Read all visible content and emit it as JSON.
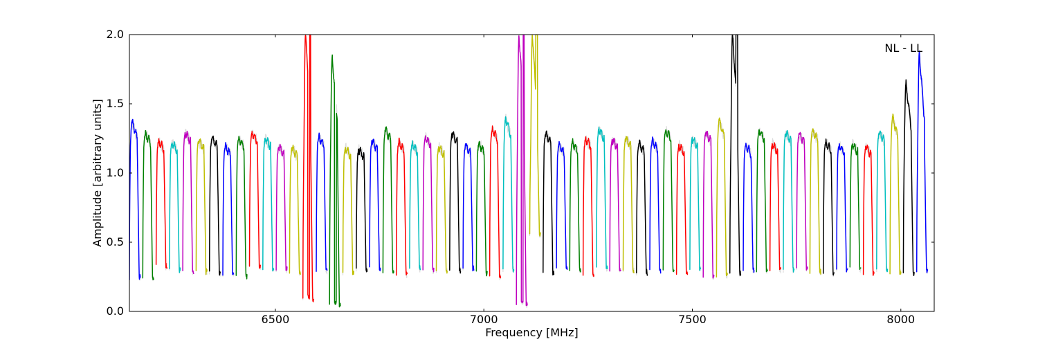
{
  "chart_data": {
    "type": "line",
    "xlabel": "Frequency [MHz]",
    "ylabel": "Amplitude [arbitrary units]",
    "annotation": "NL - LL",
    "xlim": [
      6150,
      8080
    ],
    "ylim": [
      0.0,
      2.0
    ],
    "grid": false,
    "legend": "none",
    "x_ticks": [
      {
        "value": 6500,
        "label": "6500"
      },
      {
        "value": 7000,
        "label": "7000"
      },
      {
        "value": 7500,
        "label": "7500"
      },
      {
        "value": 8000,
        "label": "8000"
      }
    ],
    "y_ticks": [
      {
        "value": 0.0,
        "label": "0.0"
      },
      {
        "value": 0.5,
        "label": "0.5"
      },
      {
        "value": 1.0,
        "label": "1.0"
      },
      {
        "value": 1.5,
        "label": "1.5"
      },
      {
        "value": 2.0,
        "label": "2.0"
      }
    ],
    "color_cycle": [
      "#0000ff",
      "#008000",
      "#ff0000",
      "#00bfbf",
      "#bf00bf",
      "#bfbf00",
      "#000000"
    ],
    "background_color": "#bfbfbf",
    "band": {
      "start": 6148,
      "step": 32.1,
      "count": 60,
      "typical_low": 0.28,
      "typical_high": 1.22
    },
    "series": [
      {
        "start": 6150,
        "end": 6176,
        "peak": 1.37,
        "low": 0.24,
        "color": "#0000ff"
      },
      {
        "start": 6182,
        "end": 6208,
        "peak": 1.28,
        "low": 0.25,
        "color": "#008000"
      },
      {
        "start": 6214,
        "end": 6240,
        "peak": 1.23,
        "low": 0.33,
        "color": "#ff0000"
      },
      {
        "start": 6246,
        "end": 6272,
        "peak": 1.22,
        "low": 0.3,
        "color": "#00bfbf"
      },
      {
        "start": 6278,
        "end": 6304,
        "peak": 1.29,
        "low": 0.29,
        "color": "#bf00bf"
      },
      {
        "start": 6310,
        "end": 6336,
        "peak": 1.23,
        "low": 0.29,
        "color": "#bfbf00"
      },
      {
        "start": 6342,
        "end": 6368,
        "peak": 1.25,
        "low": 0.28,
        "color": "#000000"
      },
      {
        "start": 6374,
        "end": 6400,
        "peak": 1.19,
        "low": 0.27,
        "color": "#0000ff"
      },
      {
        "start": 6406,
        "end": 6432,
        "peak": 1.25,
        "low": 0.26,
        "color": "#008000"
      },
      {
        "start": 6438,
        "end": 6464,
        "peak": 1.29,
        "low": 0.33,
        "color": "#ff0000"
      },
      {
        "start": 6470,
        "end": 6496,
        "peak": 1.25,
        "low": 0.3,
        "color": "#00bfbf"
      },
      {
        "start": 6502,
        "end": 6528,
        "peak": 1.19,
        "low": 0.3,
        "color": "#bf00bf"
      },
      {
        "start": 6534,
        "end": 6560,
        "peak": 1.18,
        "low": 0.28,
        "color": "#bfbf00"
      },
      {
        "start": 6566,
        "end": 6592,
        "peak": 2.0,
        "low": 0.09,
        "color": "#ff0000"
      },
      {
        "start": 6598,
        "end": 6624,
        "peak": 1.26,
        "low": 0.3,
        "color": "#0000ff"
      },
      {
        "start": 6630,
        "end": 6656,
        "peak": 1.84,
        "low": 0.05,
        "color": "#008000"
      },
      {
        "start": 6662,
        "end": 6688,
        "peak": 1.18,
        "low": 0.28,
        "color": "#bfbf00"
      },
      {
        "start": 6694,
        "end": 6720,
        "peak": 1.17,
        "low": 0.3,
        "color": "#000000"
      },
      {
        "start": 6726,
        "end": 6752,
        "peak": 1.23,
        "low": 0.32,
        "color": "#0000ff"
      },
      {
        "start": 6758,
        "end": 6784,
        "peak": 1.31,
        "low": 0.28,
        "color": "#008000"
      },
      {
        "start": 6790,
        "end": 6816,
        "peak": 1.22,
        "low": 0.27,
        "color": "#ff0000"
      },
      {
        "start": 6822,
        "end": 6848,
        "peak": 1.21,
        "low": 0.31,
        "color": "#00bfbf"
      },
      {
        "start": 6854,
        "end": 6880,
        "peak": 1.26,
        "low": 0.29,
        "color": "#bf00bf"
      },
      {
        "start": 6886,
        "end": 6912,
        "peak": 1.19,
        "low": 0.29,
        "color": "#bfbf00"
      },
      {
        "start": 6918,
        "end": 6944,
        "peak": 1.28,
        "low": 0.29,
        "color": "#000000"
      },
      {
        "start": 6950,
        "end": 6976,
        "peak": 1.2,
        "low": 0.31,
        "color": "#0000ff"
      },
      {
        "start": 6982,
        "end": 7008,
        "peak": 1.21,
        "low": 0.28,
        "color": "#008000"
      },
      {
        "start": 7014,
        "end": 7040,
        "peak": 1.31,
        "low": 0.25,
        "color": "#ff0000"
      },
      {
        "start": 7046,
        "end": 7072,
        "peak": 1.4,
        "low": 0.3,
        "color": "#00bfbf"
      },
      {
        "start": 7078,
        "end": 7104,
        "peak": 2.0,
        "low": 0.05,
        "color": "#bf00bf"
      },
      {
        "start": 7110,
        "end": 7136,
        "peak": 2.0,
        "low": 0.55,
        "color": "#bfbf00"
      },
      {
        "start": 7142,
        "end": 7168,
        "peak": 1.28,
        "low": 0.28,
        "color": "#000000"
      },
      {
        "start": 7174,
        "end": 7200,
        "peak": 1.2,
        "low": 0.32,
        "color": "#0000ff"
      },
      {
        "start": 7206,
        "end": 7232,
        "peak": 1.22,
        "low": 0.3,
        "color": "#008000"
      },
      {
        "start": 7238,
        "end": 7264,
        "peak": 1.25,
        "low": 0.27,
        "color": "#ff0000"
      },
      {
        "start": 7270,
        "end": 7296,
        "peak": 1.32,
        "low": 0.31,
        "color": "#00bfbf"
      },
      {
        "start": 7302,
        "end": 7328,
        "peak": 1.24,
        "low": 0.3,
        "color": "#bf00bf"
      },
      {
        "start": 7334,
        "end": 7360,
        "peak": 1.25,
        "low": 0.29,
        "color": "#bfbf00"
      },
      {
        "start": 7366,
        "end": 7392,
        "peak": 1.21,
        "low": 0.28,
        "color": "#000000"
      },
      {
        "start": 7398,
        "end": 7424,
        "peak": 1.23,
        "low": 0.3,
        "color": "#0000ff"
      },
      {
        "start": 7430,
        "end": 7456,
        "peak": 1.31,
        "low": 0.29,
        "color": "#008000"
      },
      {
        "start": 7462,
        "end": 7488,
        "peak": 1.2,
        "low": 0.28,
        "color": "#ff0000"
      },
      {
        "start": 7494,
        "end": 7520,
        "peak": 1.25,
        "low": 0.31,
        "color": "#00bfbf"
      },
      {
        "start": 7526,
        "end": 7552,
        "peak": 1.29,
        "low": 0.25,
        "color": "#bf00bf"
      },
      {
        "start": 7558,
        "end": 7584,
        "peak": 1.38,
        "low": 0.26,
        "color": "#bfbf00"
      },
      {
        "start": 7590,
        "end": 7616,
        "peak": 2.0,
        "low": 0.28,
        "color": "#000000"
      },
      {
        "start": 7622,
        "end": 7648,
        "peak": 1.2,
        "low": 0.3,
        "color": "#0000ff"
      },
      {
        "start": 7654,
        "end": 7680,
        "peak": 1.31,
        "low": 0.29,
        "color": "#008000"
      },
      {
        "start": 7686,
        "end": 7712,
        "peak": 1.21,
        "low": 0.3,
        "color": "#ff0000"
      },
      {
        "start": 7718,
        "end": 7744,
        "peak": 1.29,
        "low": 0.3,
        "color": "#00bfbf"
      },
      {
        "start": 7750,
        "end": 7776,
        "peak": 1.28,
        "low": 0.31,
        "color": "#bf00bf"
      },
      {
        "start": 7782,
        "end": 7808,
        "peak": 1.3,
        "low": 0.28,
        "color": "#bfbf00"
      },
      {
        "start": 7814,
        "end": 7840,
        "peak": 1.22,
        "low": 0.27,
        "color": "#000000"
      },
      {
        "start": 7846,
        "end": 7872,
        "peak": 1.2,
        "low": 0.3,
        "color": "#0000ff"
      },
      {
        "start": 7878,
        "end": 7904,
        "peak": 1.21,
        "low": 0.31,
        "color": "#008000"
      },
      {
        "start": 7910,
        "end": 7936,
        "peak": 1.19,
        "low": 0.27,
        "color": "#ff0000"
      },
      {
        "start": 7942,
        "end": 7968,
        "peak": 1.29,
        "low": 0.3,
        "color": "#00bfbf"
      },
      {
        "start": 7974,
        "end": 8000,
        "peak": 1.4,
        "low": 0.28,
        "color": "#bfbf00"
      },
      {
        "start": 8006,
        "end": 8032,
        "peak": 1.65,
        "low": 0.28,
        "color": "#000000"
      },
      {
        "start": 8038,
        "end": 8064,
        "peak": 1.87,
        "low": 0.29,
        "color": "#0000ff"
      }
    ]
  }
}
